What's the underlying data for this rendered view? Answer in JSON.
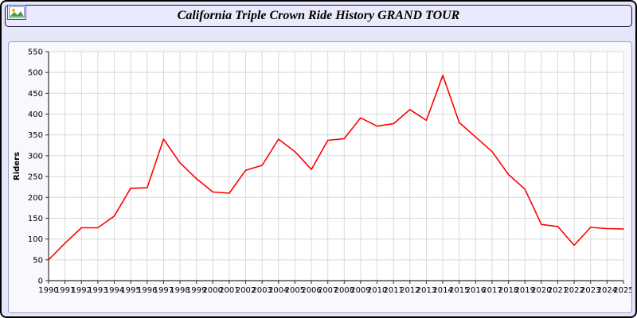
{
  "header": {
    "title": "California Triple Crown Ride History GRAND TOUR",
    "icon": "photo-icon"
  },
  "chart_data": {
    "type": "line",
    "title": "California Triple Crown Ride History GRAND TOUR",
    "xlabel": "",
    "ylabel": "Riders",
    "ylim": [
      0,
      550
    ],
    "ytick_step": 50,
    "grid": true,
    "legend": "none",
    "line_color": "#ff0000",
    "plot_bg": "#ffffff",
    "grid_color": "#d9d9d9",
    "axis_color": "#333333",
    "x": [
      1990,
      1991,
      1992,
      1993,
      1994,
      1995,
      1996,
      1997,
      1998,
      1999,
      2000,
      2001,
      2002,
      2003,
      2004,
      2005,
      2006,
      2007,
      2008,
      2009,
      2010,
      2011,
      2012,
      2013,
      2014,
      2015,
      2016,
      2017,
      2018,
      2019,
      2020,
      2021,
      2022,
      2023,
      2024,
      2025
    ],
    "values": [
      50,
      90,
      127,
      127,
      155,
      222,
      223,
      340,
      283,
      245,
      213,
      210,
      265,
      277,
      340,
      310,
      267,
      337,
      341,
      391,
      371,
      377,
      411,
      385,
      493,
      380,
      345,
      310,
      255,
      220,
      135,
      130,
      85,
      128,
      125,
      124
    ]
  }
}
